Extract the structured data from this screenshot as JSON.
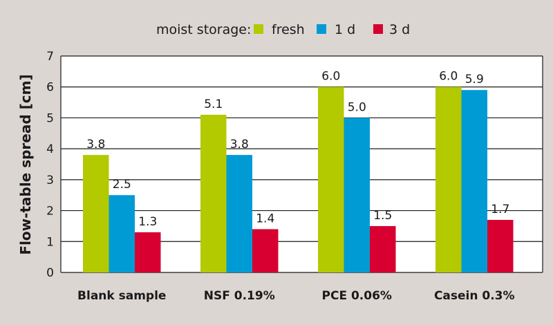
{
  "chart_data": {
    "type": "bar",
    "title": "",
    "legend_title": "moist storage:",
    "legend_position": "top-center",
    "categories": [
      "Blank sample",
      "NSF 0.19%",
      "PCE 0.06%",
      "Casein 0.3%"
    ],
    "series": [
      {
        "name": "fresh",
        "color": "#b3c900",
        "values": [
          3.8,
          5.1,
          6.0,
          6.0
        ],
        "labels": [
          "3.8",
          "5.1",
          "6.0",
          "6.0"
        ]
      },
      {
        "name": "1 d",
        "color": "#009bd5",
        "values": [
          2.5,
          3.8,
          5.0,
          5.9
        ],
        "labels": [
          "2.5",
          "3.8",
          "5.0",
          "5.9"
        ]
      },
      {
        "name": "3 d",
        "color": "#d70030",
        "values": [
          1.3,
          1.4,
          1.5,
          1.7
        ],
        "labels": [
          "1.3",
          "1.4",
          "1.5",
          "1.7"
        ]
      }
    ],
    "xlabel": "",
    "ylabel": "Flow-table spread [cm]",
    "ylim": [
      0,
      7
    ],
    "yticks": [
      "0",
      "1",
      "2",
      "3",
      "4",
      "5",
      "6",
      "7"
    ],
    "grid": true
  }
}
